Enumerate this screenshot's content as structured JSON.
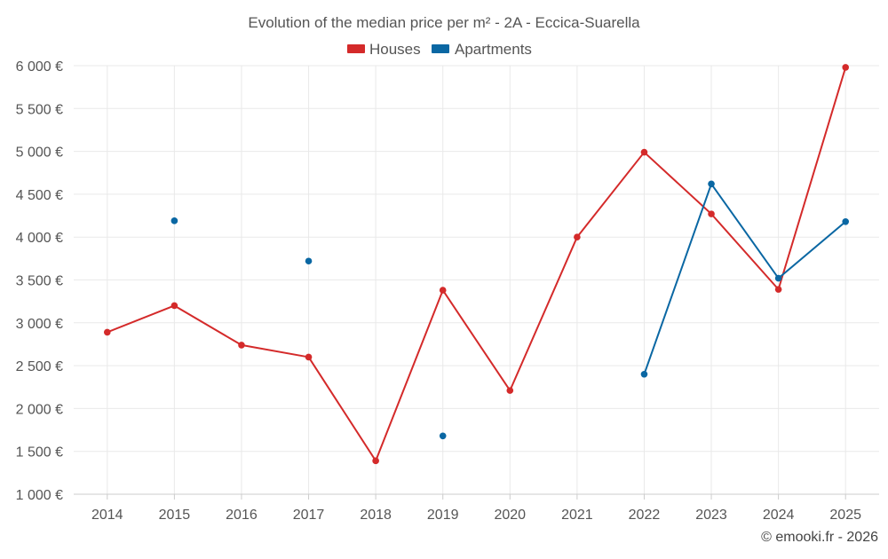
{
  "chart_data": {
    "type": "line",
    "title": "Evolution of the median price per m² - 2A - Eccica-Suarella",
    "xlabel": "",
    "ylabel": "",
    "categories": [
      "2014",
      "2015",
      "2016",
      "2017",
      "2018",
      "2019",
      "2020",
      "2021",
      "2022",
      "2023",
      "2024",
      "2025"
    ],
    "ylim": [
      1000,
      6000
    ],
    "yticks": [
      1000,
      1500,
      2000,
      2500,
      3000,
      3500,
      4000,
      4500,
      5000,
      5500,
      6000
    ],
    "ytick_labels": [
      "1 000 €",
      "1 500 €",
      "2 000 €",
      "2 500 €",
      "3 000 €",
      "3 500 €",
      "4 000 €",
      "4 500 €",
      "5 000 €",
      "5 500 €",
      "6 000 €"
    ],
    "legend_position": "top-center",
    "grid": true,
    "series": [
      {
        "name": "Houses",
        "color": "#d42a2a",
        "values": [
          2890,
          3200,
          2740,
          2600,
          1390,
          3380,
          2210,
          4000,
          4990,
          4270,
          3390,
          5980
        ]
      },
      {
        "name": "Apartments",
        "color": "#0a67a3",
        "values": [
          null,
          4190,
          null,
          3720,
          null,
          1680,
          null,
          null,
          2400,
          4620,
          3520,
          4180
        ]
      }
    ],
    "credit": "© emooki.fr - 2026"
  }
}
